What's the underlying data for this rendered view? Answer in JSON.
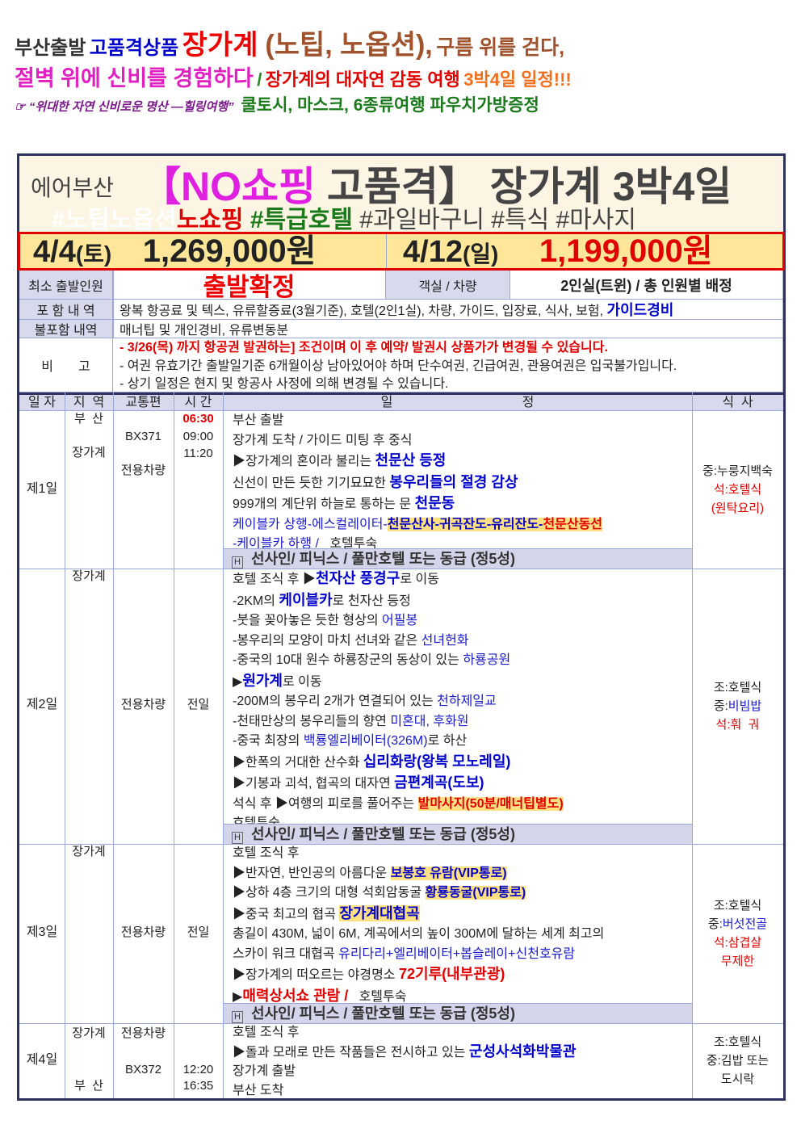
{
  "headline": {
    "line1": [
      "부산출발",
      "고품격상품",
      "장가계",
      "(노팁, 노옵션),",
      "구름 위를 걷다,"
    ],
    "line2": [
      "절벽 위에 신비를 경험하다",
      "/",
      "장가계의 대자연 감동 여행",
      "3박4일 일정!!!"
    ],
    "line3_icon": "pointing-hand-icon",
    "line3_icon_glyph": "☞",
    "line3": [
      "“위대한 자연 신비로운 명산 ―힐링여행”",
      "쿨토시, 마스크, 6종류여행 파우치가방증정"
    ]
  },
  "title_box": {
    "airline": "에어부산",
    "no_shopping": "【NO쇼핑",
    "title_rest": "고품격】 장가계 3박4일",
    "tags": [
      "#노팁노옵션",
      "노쇼핑",
      "#특급호텔",
      "#과일바구니 #특식 #마사지"
    ]
  },
  "prices": [
    {
      "date": "4/4",
      "day": "(토)",
      "price": "1,269,000원"
    },
    {
      "date": "4/12",
      "day": "(일)",
      "price": "1,199,000원"
    }
  ],
  "info": {
    "min_label": "최소 출발인원",
    "min_value": "출발확정",
    "room_label": "객실 / 차량",
    "room_value": "2인실(트윈) / 총 인원별 배정",
    "include_label": "포 함 내 역",
    "include_value": "왕복 항공료 및 텍스, 유류할증료(3월기준), 호텔(2인1실), 차량, 가이드, 입장료, 식사, 보험,",
    "include_extra": "가이드경비",
    "exclude_label": "불포함 내역",
    "exclude_value": "매너팁 및 개인경비, 유류변동분",
    "note_label": "비       고",
    "notes": [
      "- 3/26(목) 까지 항공권 발권하는] 조건이며 이 후 예약/ 발권시 상품가가 변경될 수 있습니다.",
      "- 여권 유효기간 출발일기준 6개월이상 남아있어야 하며 단수여권, 긴급여권, 관용여권은 입국불가입니다.",
      "- 상기 일정은 현지 및 항공사 사정에 의해 변경될 수 있습니다."
    ]
  },
  "table_header": {
    "day": "일 자",
    "region": "지  역",
    "transport": "교통편",
    "time": "시 간",
    "schedule": [
      "일",
      "정"
    ],
    "meal": "식  사"
  },
  "days": [
    {
      "label": "제1일",
      "region": [
        "부  산",
        "장가계"
      ],
      "transport": [
        "BX371",
        "전용차량"
      ],
      "time": [
        "06:30",
        "09:00",
        "11:20"
      ],
      "lines": [
        [
          {
            "t": "부산 출발",
            "c": "n"
          }
        ],
        [
          {
            "t": "장가계 도착 / 가이드 미팅 후 중식",
            "c": "n"
          }
        ],
        [
          {
            "t": "▶장가계의 혼이라 불리는 ",
            "c": "n"
          },
          {
            "t": "천문산 등정",
            "c": "b s-big"
          }
        ],
        [
          {
            "t": "신선이 만든 듯한 기기묘묘한 ",
            "c": "n"
          },
          {
            "t": "봉우리들의 절경 감상",
            "c": "b s-big"
          }
        ],
        [
          {
            "t": "999개의 계단위 하늘로 통하는 문 ",
            "c": "n"
          },
          {
            "t": "천문동",
            "c": "b s-big"
          }
        ],
        [
          {
            "t": "케이블카 상행-에스컬레이터-",
            "c": "bl"
          },
          {
            "t": "천문산사-귀곡잔도-유리잔도-",
            "c": "hb"
          },
          {
            "t": "천문산동선",
            "c": "hr"
          }
        ],
        [
          {
            "t": "-케이블카 하행 /   ",
            "c": "bl"
          },
          {
            "t": "호텔투숙",
            "c": "n"
          }
        ]
      ],
      "hotel": "선사인/ 피닉스 / 풀만호텔 또는 동급 (정5성)",
      "meals": [
        [
          {
            "t": "중:누룽지백숙",
            "c": "n"
          }
        ],
        [
          {
            "t": "석:호텔식",
            "c": "rn"
          }
        ],
        [
          {
            "t": "(원탁요리)",
            "c": "rn"
          }
        ]
      ]
    },
    {
      "label": "제2일",
      "region": [
        "장가계"
      ],
      "transport": [
        "전용차량"
      ],
      "time": [
        "전일"
      ],
      "lines": [
        [
          {
            "t": "호텔 조식 후 ▶",
            "c": "n"
          },
          {
            "t": "천자산 풍경구",
            "c": "b s-big"
          },
          {
            "t": "로 이동",
            "c": "n"
          }
        ],
        [
          {
            "t": "-2KM의 ",
            "c": "n"
          },
          {
            "t": "케이블카",
            "c": "b s-big"
          },
          {
            "t": "로 천자산 등정",
            "c": "n"
          }
        ],
        [
          {
            "t": "-붓을 꽂아놓은 듯한 형상의 ",
            "c": "n"
          },
          {
            "t": "어필봉",
            "c": "bl"
          }
        ],
        [
          {
            "t": "-봉우리의 모양이 마치 선녀와 같은 ",
            "c": "n"
          },
          {
            "t": "선녀헌화",
            "c": "bl"
          }
        ],
        [
          {
            "t": "-중국의 10대 원수 하룡장군의 동상이 있는 ",
            "c": "n"
          },
          {
            "t": "하룡공원",
            "c": "bl"
          }
        ],
        [
          {
            "t": "▶",
            "c": "n"
          },
          {
            "t": "원가계",
            "c": "b s-big"
          },
          {
            "t": "로 이동",
            "c": "n"
          }
        ],
        [
          {
            "t": "-200M의 봉우리 2개가 연결되어 있는 ",
            "c": "n"
          },
          {
            "t": "천하제일교",
            "c": "bl"
          }
        ],
        [
          {
            "t": "-천태만상의 봉우리들의 향연 ",
            "c": "n"
          },
          {
            "t": "미혼대, 후화원",
            "c": "bl"
          }
        ],
        [
          {
            "t": "-중국 최장의 ",
            "c": "n"
          },
          {
            "t": "백룡엘리베이터(326M)",
            "c": "bl"
          },
          {
            "t": "로 하산",
            "c": "n"
          }
        ],
        [
          {
            "t": "▶한폭의 거대한 산수화 ",
            "c": "n"
          },
          {
            "t": "십리화랑(왕복 모노레일)",
            "c": "b s-big"
          }
        ],
        [
          {
            "t": "▶기봉과 괴석, 협곡의 대자연 ",
            "c": "n"
          },
          {
            "t": "금편계곡(도보)",
            "c": "b s-big"
          }
        ],
        [
          {
            "t": "석식 후 ▶여행의 피로를 풀어주는 ",
            "c": "n"
          },
          {
            "t": "발마사지(50분/매너팁별도)",
            "c": "hr"
          }
        ],
        [
          {
            "t": "호텔투숙",
            "c": "n"
          }
        ]
      ],
      "hotel": "선사인/ 피닉스 / 풀만호텔 또는 동급 (정5성)",
      "meals": [
        [
          {
            "t": "조:호텔식",
            "c": "n"
          }
        ],
        [
          {
            "t": "중:",
            "c": "n"
          },
          {
            "t": "비빔밥",
            "c": "bl"
          }
        ],
        [
          {
            "t": "석:훠  궈",
            "c": "rn"
          }
        ]
      ]
    },
    {
      "label": "제3일",
      "region": [
        "장가계"
      ],
      "transport": [
        "전용차량"
      ],
      "time": [
        "전일"
      ],
      "lines": [
        [
          {
            "t": "호텔 조식 후",
            "c": "n"
          }
        ],
        [
          {
            "t": "▶반자연, 반인공의 아름다운 ",
            "c": "n"
          },
          {
            "t": "보봉호 유람(VIP통로)",
            "c": "hb"
          }
        ],
        [
          {
            "t": "▶상하 4층 크기의 대형 석회암동굴 ",
            "c": "n"
          },
          {
            "t": "황룡동굴(VIP통로)",
            "c": "hb"
          }
        ],
        [
          {
            "t": "▶중국 최고의 협곡 ",
            "c": "n"
          },
          {
            "t": "장가계대협곡",
            "c": "hb s-big"
          }
        ],
        [
          {
            "t": "총길이 430M, 넓이 6M, 계곡에서의 높이 300M에 달하는 세계 최고의",
            "c": "n"
          }
        ],
        [
          {
            "t": "스카이 워크 대협곡 ",
            "c": "n"
          },
          {
            "t": "유리다리+엘리베이터+봅슬레이+신천호유람",
            "c": "bl"
          }
        ],
        [
          {
            "t": "▶장가계의 떠오르는 야경명소 ",
            "c": "n"
          },
          {
            "t": "72기루(내부관광)",
            "c": "r s-big"
          }
        ],
        [
          {
            "t": "▶",
            "c": "n"
          },
          {
            "t": "매력상서쇼 관람 /",
            "c": "r s-big"
          },
          {
            "t": "   호텔투숙",
            "c": "n"
          }
        ]
      ],
      "hotel": "선사인/ 피닉스 / 풀만호텔 또는 동급 (정5성)",
      "meals": [
        [
          {
            "t": "조:호텔식",
            "c": "n"
          }
        ],
        [
          {
            "t": "중:",
            "c": "n"
          },
          {
            "t": "버섯전골",
            "c": "bl"
          }
        ],
        [
          {
            "t": "석:삼겹살",
            "c": "rn"
          }
        ],
        [
          {
            "t": "무제한",
            "c": "rn"
          }
        ]
      ]
    },
    {
      "label": "제4일",
      "region": [
        "장가계",
        "부  산"
      ],
      "transport": [
        "전용차량",
        "BX372"
      ],
      "time": [
        "12:20",
        "16:35"
      ],
      "lines": [
        [
          {
            "t": "호텔 조식 후",
            "c": "n"
          }
        ],
        [
          {
            "t": "▶돌과 모래로 만든 작품들은 전시하고 있는 ",
            "c": "n"
          },
          {
            "t": "군성사석화박물관",
            "c": "b s-big"
          }
        ],
        [
          {
            "t": "장가계 출발",
            "c": "n"
          }
        ],
        [
          {
            "t": "부산 도착",
            "c": "n"
          }
        ]
      ],
      "meals": [
        [
          {
            "t": "조:호텔식",
            "c": "n"
          }
        ],
        [
          {
            "t": "중:김밥 또는",
            "c": "n"
          }
        ],
        [
          {
            "t": "도시락",
            "c": "n"
          }
        ]
      ]
    }
  ],
  "hotel_icon": "hotel-icon",
  "colors": {
    "frame": "#2e3060",
    "label_bg": "#d9d9ee",
    "price_bg": "#ffe699",
    "accent_red": "#e00000",
    "accent_blue": "#0000cc",
    "highlight": "#ffe083"
  }
}
